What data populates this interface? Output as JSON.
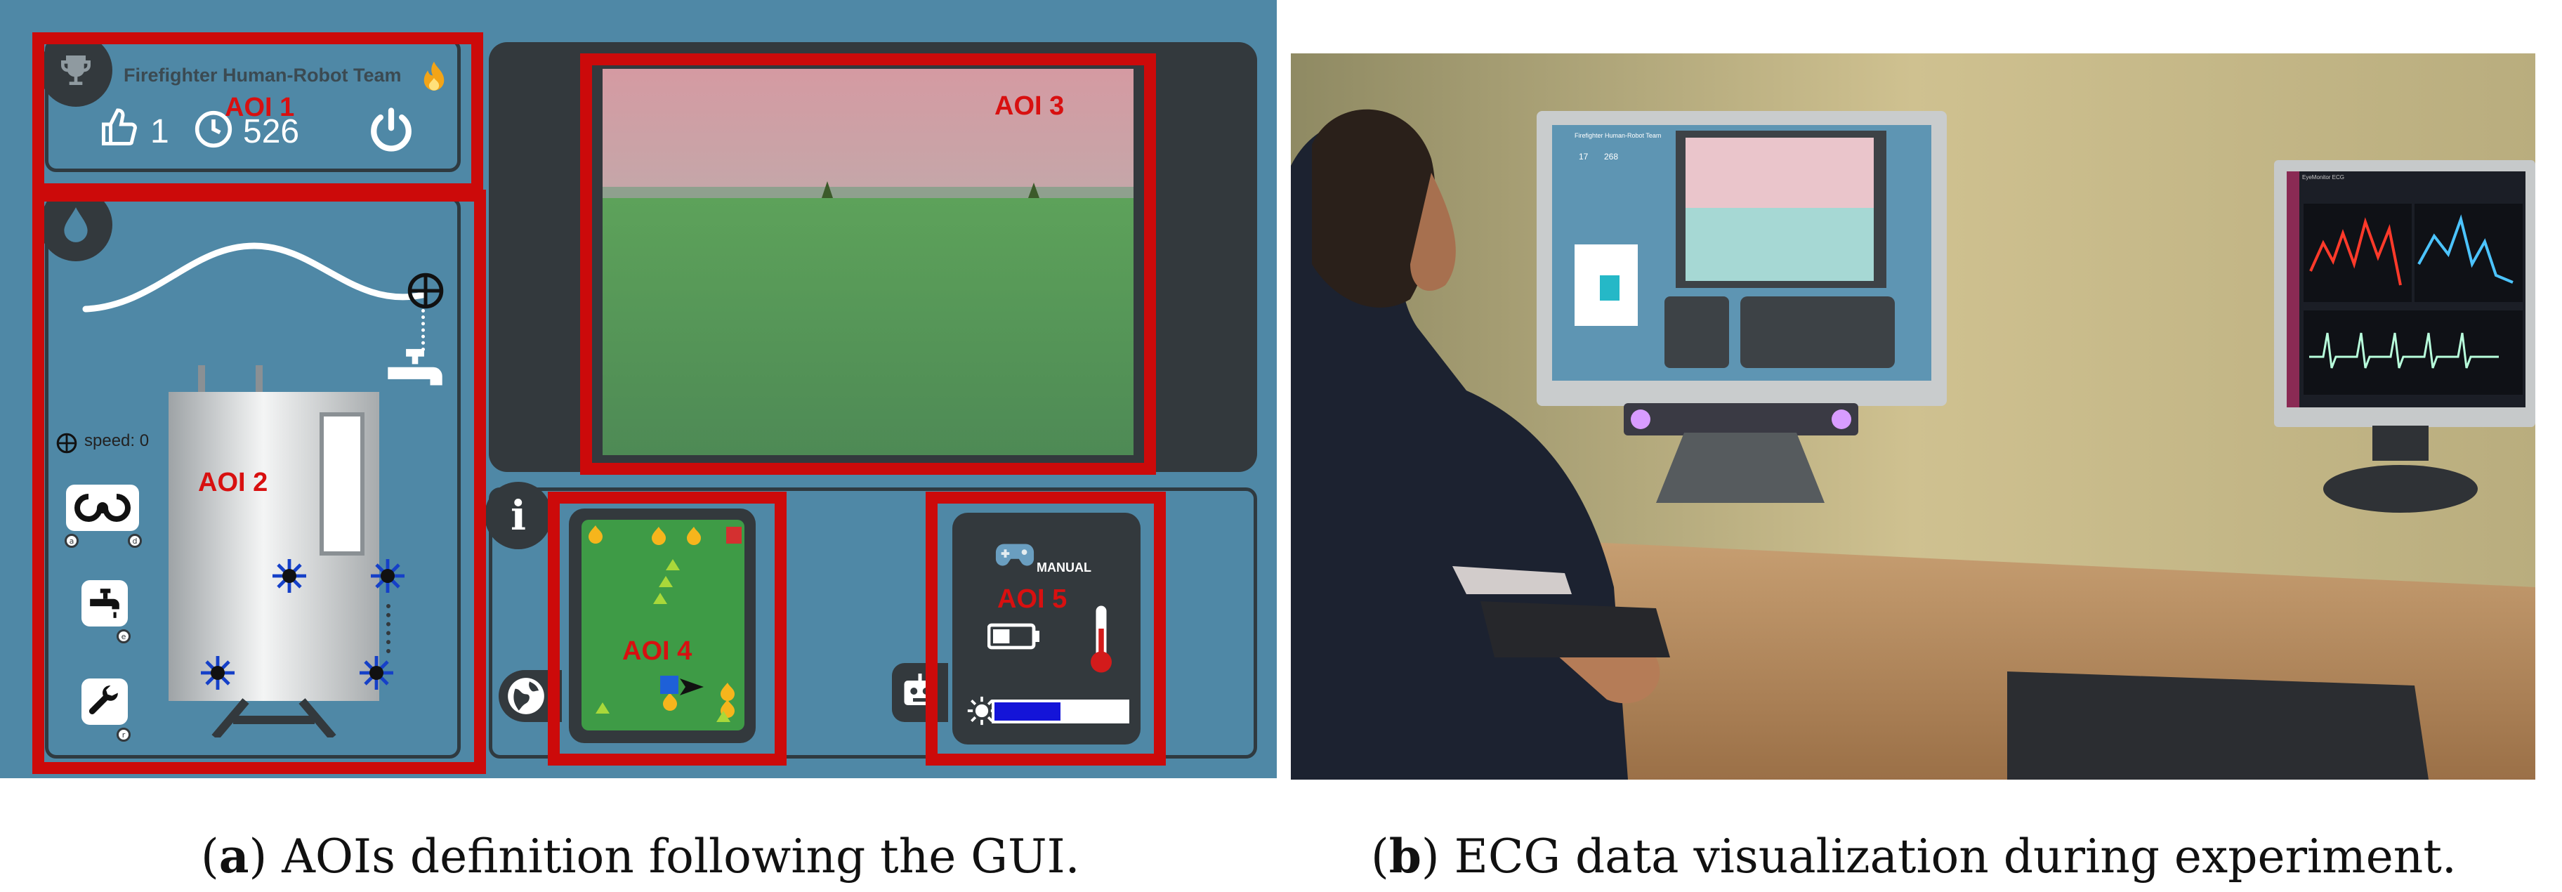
{
  "gui": {
    "team_title": "Firefighter Human-Robot Team",
    "likes": "1",
    "time": "526",
    "speed_label": "speed: 0",
    "manual_label": "MANUAL",
    "battery_level": 0.45,
    "light_level": 0.5,
    "colors": {
      "panel_bg": "#4f88a6",
      "dark": "#33393d",
      "aoi_red": "#cc0a0a",
      "map_green": "#3e9b46"
    },
    "icons": [
      "trophy-icon",
      "fire-icon",
      "thumbs-up-icon",
      "clock-icon",
      "power-icon",
      "water-drop-icon",
      "crosshair-icon",
      "faucet-icon",
      "rotate-icon",
      "tap-icon",
      "wrench-icon",
      "info-icon",
      "globe-icon",
      "robot-icon",
      "gamepad-icon",
      "battery-icon",
      "thermometer-icon",
      "sun-icon"
    ]
  },
  "aois": [
    "AOI 1",
    "AOI 2",
    "AOI 3",
    "AOI 4",
    "AOI 5"
  ],
  "photo": {
    "monitor_left": {
      "team_title": "Firefighter Human-Robot Team",
      "likes": "17",
      "time": "268"
    },
    "monitor_right": {
      "title": "EyeMonitor ECG"
    }
  },
  "captions": {
    "a_prefix": "(",
    "a_letter": "a",
    "a_text": ") AOIs definition following the GUI.",
    "b_prefix": "(",
    "b_letter": "b",
    "b_text": ") ECG data visualization during experiment."
  }
}
